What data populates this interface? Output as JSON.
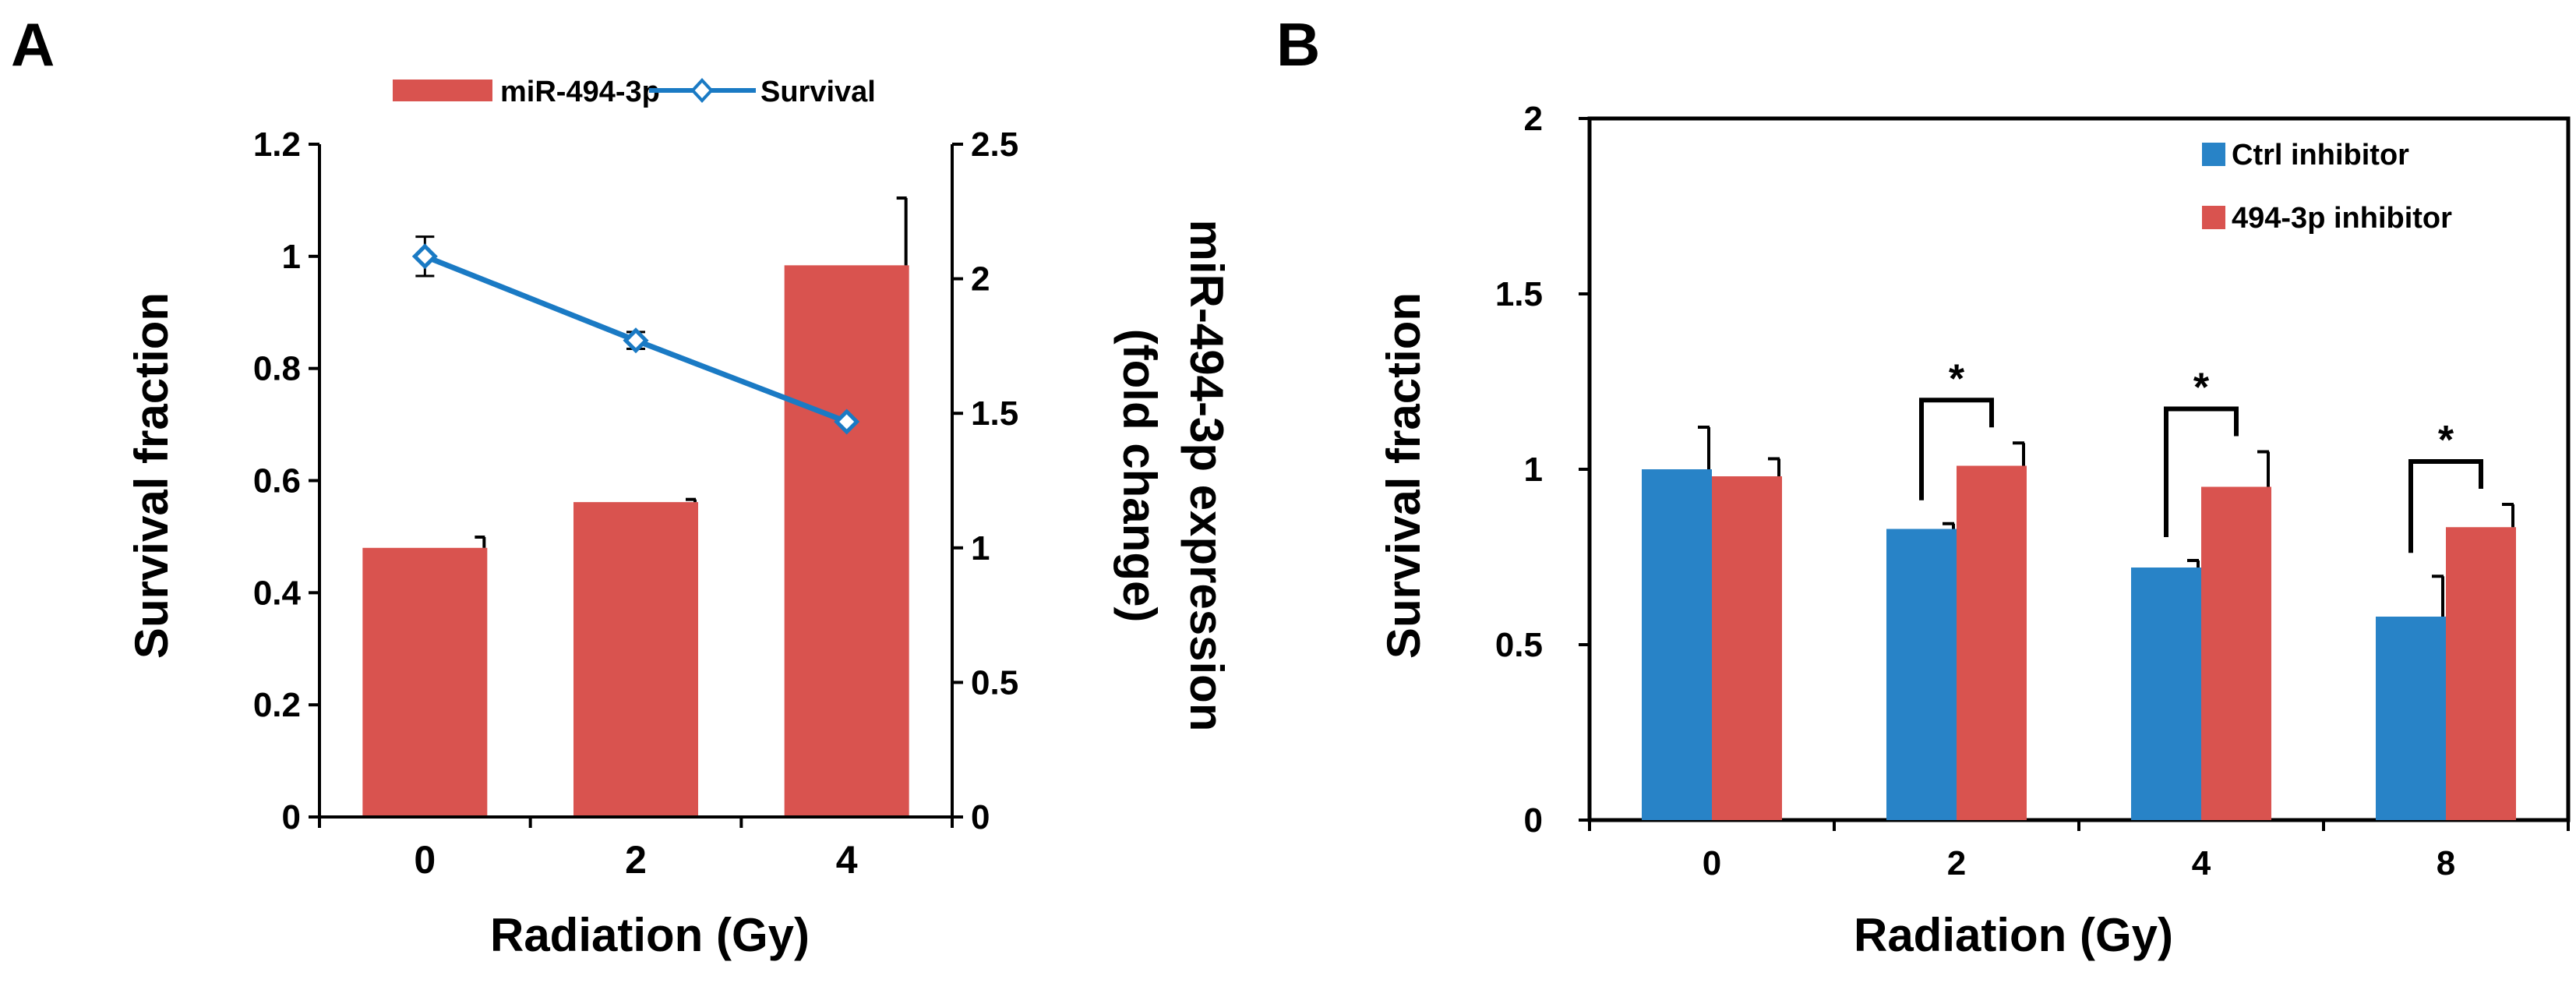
{
  "figure": {
    "panel_a_label": "A",
    "panel_b_label": "B"
  },
  "colors": {
    "red": "#d9534f",
    "blue": "#2883c7",
    "line": "#1a7ac4",
    "black": "#000000"
  },
  "chart_data": [
    {
      "id": "A",
      "type": "bar",
      "title": "",
      "xlabel": "Radiation (Gy)",
      "ylabel": "Survival fraction",
      "y2label_line1": "miR-494-3p expression",
      "y2label_line2": "(fold change)",
      "categories": [
        "0",
        "2",
        "4"
      ],
      "ylim": [
        0,
        1.2
      ],
      "yticks": [
        "0",
        "0.2",
        "0.4",
        "0.6",
        "0.8",
        "1",
        "1.2"
      ],
      "y2lim": [
        0,
        2.5
      ],
      "y2ticks": [
        "0",
        "0.5",
        "1",
        "1.5",
        "2",
        "2.5"
      ],
      "legend_position": "top",
      "series": [
        {
          "name": "miR-494-3p",
          "kind": "bar",
          "axis": "right",
          "values": [
            1.0,
            1.17,
            2.05
          ],
          "errors": [
            0.04,
            0.01,
            0.25
          ]
        },
        {
          "name": "Survival",
          "kind": "line",
          "axis": "left",
          "values": [
            1.0,
            0.85,
            0.705
          ],
          "errors": [
            0.035,
            0.015,
            0.0
          ]
        }
      ]
    },
    {
      "id": "B",
      "type": "bar",
      "title": "",
      "xlabel": "Radiation (Gy)",
      "ylabel": "Survival fraction",
      "categories": [
        "0",
        "2",
        "4",
        "8"
      ],
      "ylim": [
        0,
        2
      ],
      "yticks": [
        "0",
        "0.5",
        "1",
        "1.5",
        "2"
      ],
      "legend_position": "top-right",
      "series": [
        {
          "name": "Ctrl inhibitor",
          "values": [
            1.0,
            0.83,
            0.72,
            0.58
          ],
          "errors": [
            0.12,
            0.015,
            0.02,
            0.115
          ]
        },
        {
          "name": "494-3p inhibitor",
          "values": [
            0.98,
            1.01,
            0.95,
            0.835
          ],
          "errors": [
            0.05,
            0.065,
            0.1,
            0.065
          ]
        }
      ],
      "significance": [
        {
          "category": "2",
          "label": "*"
        },
        {
          "category": "4",
          "label": "*"
        },
        {
          "category": "8",
          "label": "*"
        }
      ]
    }
  ]
}
